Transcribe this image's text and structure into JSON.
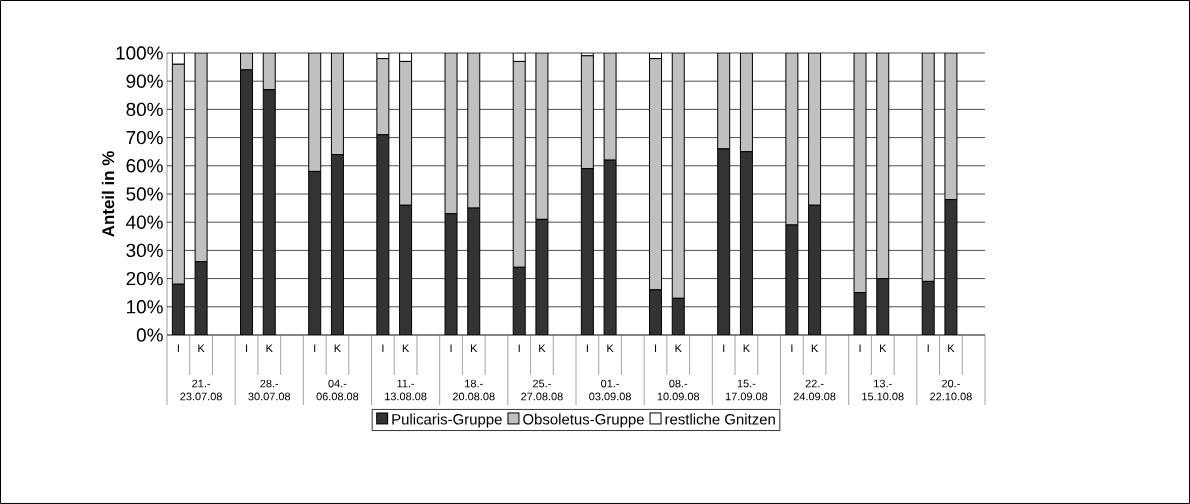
{
  "chart_data": {
    "type": "bar",
    "stacked": true,
    "ylabel": "Anteil in %",
    "categories": [
      "I",
      "K",
      null,
      "I",
      "K",
      null,
      "I",
      "K",
      null,
      "I",
      "K",
      null,
      "I",
      "K",
      null,
      "I",
      "K",
      null,
      "I",
      "K",
      null,
      "I",
      "K",
      null,
      "I",
      "K",
      null,
      "I",
      "K",
      null,
      "I",
      "K",
      null,
      "I",
      "K",
      null
    ],
    "annotations": [
      "21.- 23.07.08",
      "28.- 30.07.08",
      "04.- 06.08.08",
      "11.- 13.08.08",
      "18.- 20.08.08",
      "25.- 27.08.08",
      "01.- 03.09.08",
      "08.- 10.09.08",
      "15.- 17.09.08",
      "22.- 24.09.08",
      "13.- 15.10.08",
      "20.- 22.10.08"
    ],
    "series": [
      {
        "name": "Pulicaris-Gruppe",
        "color": "#333333",
        "values": [
          18,
          26,
          null,
          94,
          87,
          null,
          58,
          64,
          null,
          71,
          46,
          null,
          43,
          45,
          null,
          24,
          41,
          null,
          59,
          62,
          null,
          16,
          13,
          null,
          66,
          65,
          null,
          39,
          46,
          null,
          15,
          20,
          null,
          19,
          48,
          null
        ]
      },
      {
        "name": "Obsoletus-Gruppe",
        "color": "#c0c0c0",
        "values": [
          78,
          74,
          null,
          6,
          13,
          null,
          42,
          36,
          null,
          27,
          51,
          null,
          57,
          55,
          null,
          73,
          59,
          null,
          40,
          38,
          null,
          82,
          87,
          null,
          34,
          35,
          null,
          61,
          54,
          null,
          85,
          80,
          null,
          81,
          52,
          null
        ]
      },
      {
        "name": "restliche Gnitzen",
        "color": "#ffffff",
        "values": [
          4,
          0,
          null,
          0,
          0,
          null,
          0,
          0,
          null,
          2,
          3,
          null,
          0,
          0,
          null,
          3,
          0,
          null,
          1,
          0,
          null,
          2,
          0,
          null,
          0,
          0,
          null,
          0,
          0,
          null,
          0,
          0,
          null,
          0,
          0,
          null
        ]
      }
    ],
    "ylim": [
      0,
      100
    ],
    "yticks": [
      {
        "value": 0,
        "label": "0%"
      },
      {
        "value": 10,
        "label": "10%"
      },
      {
        "value": 20,
        "label": "20%"
      },
      {
        "value": 30,
        "label": "30%"
      },
      {
        "value": 40,
        "label": "40%"
      },
      {
        "value": 50,
        "label": "50%"
      },
      {
        "value": 60,
        "label": "60%"
      },
      {
        "value": 70,
        "label": "70%"
      },
      {
        "value": 80,
        "label": "80%"
      },
      {
        "value": 90,
        "label": "90%"
      },
      {
        "value": 100,
        "label": "100%"
      }
    ],
    "grid": "y",
    "legend": "bottom"
  }
}
